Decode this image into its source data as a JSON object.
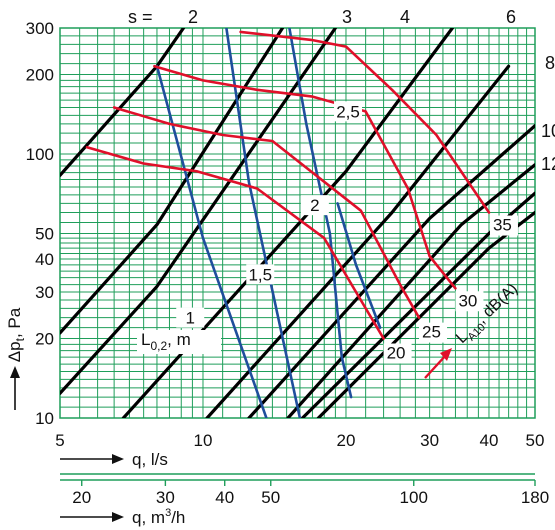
{
  "chart_data": {
    "type": "line",
    "x_scale": "log",
    "y_scale": "log",
    "xlim": [
      5,
      50
    ],
    "ylim": [
      10,
      300
    ],
    "grid": true,
    "x_ticks": [
      "5",
      "10",
      "20",
      "30",
      "40",
      "50"
    ],
    "y_ticks": [
      "10",
      "20",
      "30",
      "40",
      "50",
      "100",
      "200",
      "300"
    ],
    "x2_ticks": [
      "20",
      "30",
      "40",
      "50",
      "100",
      "180"
    ],
    "x_label_prefix": "q, ",
    "x_label_unit": "l/s",
    "x2_label_prefix": "q, m",
    "x2_label_sup": "3",
    "x2_label_suffix": "/h",
    "y_label_main": "Δp",
    "y_label_sub": "t",
    "y_label_suffix": ", Pa",
    "colors": {
      "grid": "#1f9e5a",
      "slot": "#000000",
      "throw": "#1f4e9c",
      "sound": "#e0102a"
    },
    "slot_setting_prefix": "s = ",
    "slot_lines": [
      {
        "label": "2",
        "points": [
          [
            5,
            83
          ],
          [
            8,
            215
          ],
          [
            9.1,
            300
          ]
        ]
      },
      {
        "label": "3",
        "points": [
          [
            5,
            21
          ],
          [
            8,
            54
          ],
          [
            14.7,
            300
          ]
        ]
      },
      {
        "label": "4",
        "points": [
          [
            5,
            12.4
          ],
          [
            8,
            31.5
          ],
          [
            19,
            300
          ]
        ]
      },
      {
        "label": "6",
        "points": [
          [
            6.8,
            10
          ],
          [
            20,
            86
          ],
          [
            33.5,
            300
          ]
        ]
      },
      {
        "label": "8",
        "points": [
          [
            10.2,
            10
          ],
          [
            25,
            60
          ],
          [
            44,
            215
          ]
        ]
      },
      {
        "label": "10",
        "points": [
          [
            12.5,
            10
          ],
          [
            30,
            57
          ],
          [
            50,
            128
          ]
        ]
      },
      {
        "label": "12",
        "points": [
          [
            15.1,
            10
          ],
          [
            35,
            54
          ],
          [
            50,
            91
          ]
        ]
      },
      {
        "points": [
          [
            16.2,
            10
          ],
          [
            40,
            50
          ],
          [
            50,
            71
          ]
        ]
      },
      {
        "points": [
          [
            17.5,
            10
          ],
          [
            40,
            44
          ],
          [
            50,
            60
          ]
        ]
      }
    ],
    "throw_label": "L",
    "throw_label_sub": "0,2",
    "throw_label_suffix": ", m",
    "throw_lines": [
      {
        "label": "1",
        "points": [
          [
            8,
            215
          ],
          [
            10,
            48
          ],
          [
            13.6,
            10
          ]
        ],
        "label_at": [
          9.4,
          24
        ]
      },
      {
        "label": "1,5",
        "points": [
          [
            11.2,
            300
          ],
          [
            12.5,
            78
          ],
          [
            16,
            10
          ]
        ],
        "label_at": [
          13.2,
          35
        ]
      },
      {
        "label": "2",
        "points": [
          [
            15.2,
            300
          ],
          [
            16.5,
            130
          ],
          [
            18.5,
            50
          ],
          [
            19.6,
            17
          ],
          [
            20.5,
            12
          ]
        ],
        "label_at": [
          17.2,
          64
        ]
      },
      {
        "label": "2,5",
        "points": [
          [
            19.2,
            65
          ],
          [
            21,
            38
          ],
          [
            23.6,
            22
          ]
        ],
        "label_at": [
          20.2,
          145
        ]
      }
    ],
    "sound_label": "L",
    "sound_label_sub": "A10",
    "sound_label_suffix": ", dB(A)",
    "sound_lines": [
      {
        "label": "20",
        "points": [
          [
            5.7,
            106
          ],
          [
            7.5,
            92
          ],
          [
            9.7,
            86
          ],
          [
            13,
            74
          ],
          [
            18,
            48
          ],
          [
            21,
            30
          ],
          [
            24,
            20
          ]
        ]
      },
      {
        "label": "25",
        "points": [
          [
            6.5,
            150
          ],
          [
            8.5,
            130
          ],
          [
            11,
            118
          ],
          [
            14,
            112
          ],
          [
            21.5,
            61
          ],
          [
            26,
            32
          ],
          [
            28.5,
            24
          ]
        ]
      },
      {
        "label": "30",
        "points": [
          [
            7.9,
            215
          ],
          [
            10,
            190
          ],
          [
            13,
            175
          ],
          [
            17,
            165
          ],
          [
            22,
            145
          ],
          [
            27,
            74
          ],
          [
            30,
            41
          ],
          [
            34,
            31
          ]
        ]
      },
      {
        "label": "35",
        "points": [
          [
            12,
            290
          ],
          [
            17,
            270
          ],
          [
            20,
            255
          ],
          [
            25,
            175
          ],
          [
            31,
            118
          ],
          [
            40,
            60
          ]
        ]
      }
    ]
  }
}
